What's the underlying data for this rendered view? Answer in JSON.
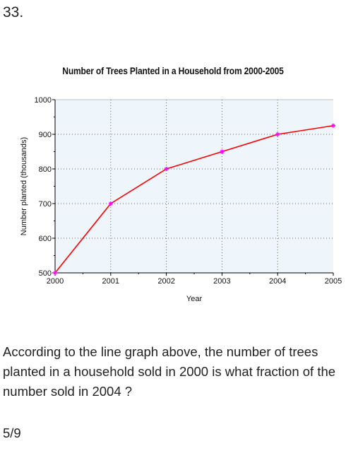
{
  "question_number": "33.",
  "question_text": "According to the line graph above, the number of trees planted in a household sold in 2000 is what fraction of the number sold in 2004 ?",
  "answer": "5/9",
  "chart_data": {
    "type": "line",
    "title": "Number of Trees Planted in a Household from 2000-2005",
    "xlabel": "Year",
    "ylabel": "Number planted (thousands)",
    "x": [
      2000,
      2001,
      2002,
      2003,
      2004,
      2005
    ],
    "xticks": [
      "2000",
      "2001",
      "2002",
      "2003",
      "2004",
      "2005"
    ],
    "yticks": [
      "500",
      "600",
      "700",
      "800",
      "900",
      "1000"
    ],
    "ylim": [
      500,
      1000
    ],
    "series": [
      {
        "values": [
          500,
          700,
          800,
          850,
          900,
          925
        ]
      }
    ],
    "grid": true,
    "colors": {
      "line": "#ff0000",
      "marker": "#ff00ff",
      "plot_bg": "#eef5fb",
      "grid": "#666666"
    }
  }
}
